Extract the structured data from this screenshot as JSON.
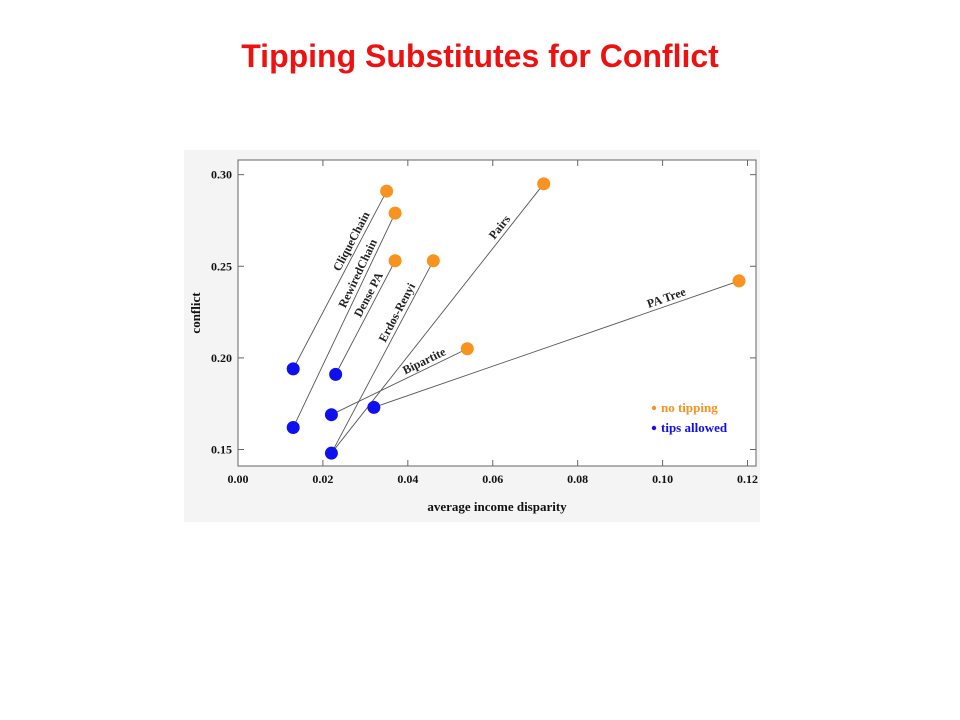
{
  "page": {
    "title": "Tipping Substitutes for Conflict"
  },
  "chart_data": {
    "type": "scatter",
    "title": "",
    "xlabel": "average income disparity",
    "ylabel": "conflict",
    "xlim": [
      0.0,
      0.122
    ],
    "ylim": [
      0.141,
      0.308
    ],
    "xticks": [
      "0.00",
      "0.02",
      "0.04",
      "0.06",
      "0.08",
      "0.10",
      "0.12"
    ],
    "xtick_values": [
      0.0,
      0.02,
      0.04,
      0.06,
      0.08,
      0.1,
      0.12
    ],
    "yticks": [
      "0.15",
      "0.20",
      "0.25",
      "0.30"
    ],
    "ytick_values": [
      0.15,
      0.2,
      0.25,
      0.3
    ],
    "grid": false,
    "legend_position": "bottom-right",
    "series": [
      {
        "name": "no tipping",
        "color": "#f7931e",
        "points": [
          {
            "x": 0.035,
            "y": 0.291
          },
          {
            "x": 0.037,
            "y": 0.279
          },
          {
            "x": 0.037,
            "y": 0.253
          },
          {
            "x": 0.046,
            "y": 0.253
          },
          {
            "x": 0.072,
            "y": 0.295
          },
          {
            "x": 0.054,
            "y": 0.205
          },
          {
            "x": 0.118,
            "y": 0.242
          }
        ]
      },
      {
        "name": "tips allowed",
        "color": "#1010ee",
        "points": [
          {
            "x": 0.013,
            "y": 0.194
          },
          {
            "x": 0.013,
            "y": 0.162
          },
          {
            "x": 0.023,
            "y": 0.191
          },
          {
            "x": 0.022,
            "y": 0.148
          },
          {
            "x": 0.022,
            "y": 0.169
          },
          {
            "x": 0.032,
            "y": 0.173
          }
        ]
      }
    ],
    "links": [
      {
        "label": "CliqueChain",
        "from": {
          "x": 0.013,
          "y": 0.194
        },
        "to": {
          "x": 0.035,
          "y": 0.291
        }
      },
      {
        "label": "RewiredChain",
        "from": {
          "x": 0.013,
          "y": 0.162
        },
        "to": {
          "x": 0.037,
          "y": 0.279
        }
      },
      {
        "label": "Dense PA",
        "from": {
          "x": 0.023,
          "y": 0.191
        },
        "to": {
          "x": 0.037,
          "y": 0.253
        }
      },
      {
        "label": "Erdos-Renyi",
        "from": {
          "x": 0.022,
          "y": 0.148
        },
        "to": {
          "x": 0.046,
          "y": 0.253
        }
      },
      {
        "label": "Pairs",
        "from": {
          "x": 0.022,
          "y": 0.148
        },
        "to": {
          "x": 0.072,
          "y": 0.295
        }
      },
      {
        "label": "Bipartite",
        "from": {
          "x": 0.022,
          "y": 0.169
        },
        "to": {
          "x": 0.054,
          "y": 0.205
        }
      },
      {
        "label": "PA Tree",
        "from": {
          "x": 0.032,
          "y": 0.173
        },
        "to": {
          "x": 0.118,
          "y": 0.242
        }
      }
    ]
  }
}
